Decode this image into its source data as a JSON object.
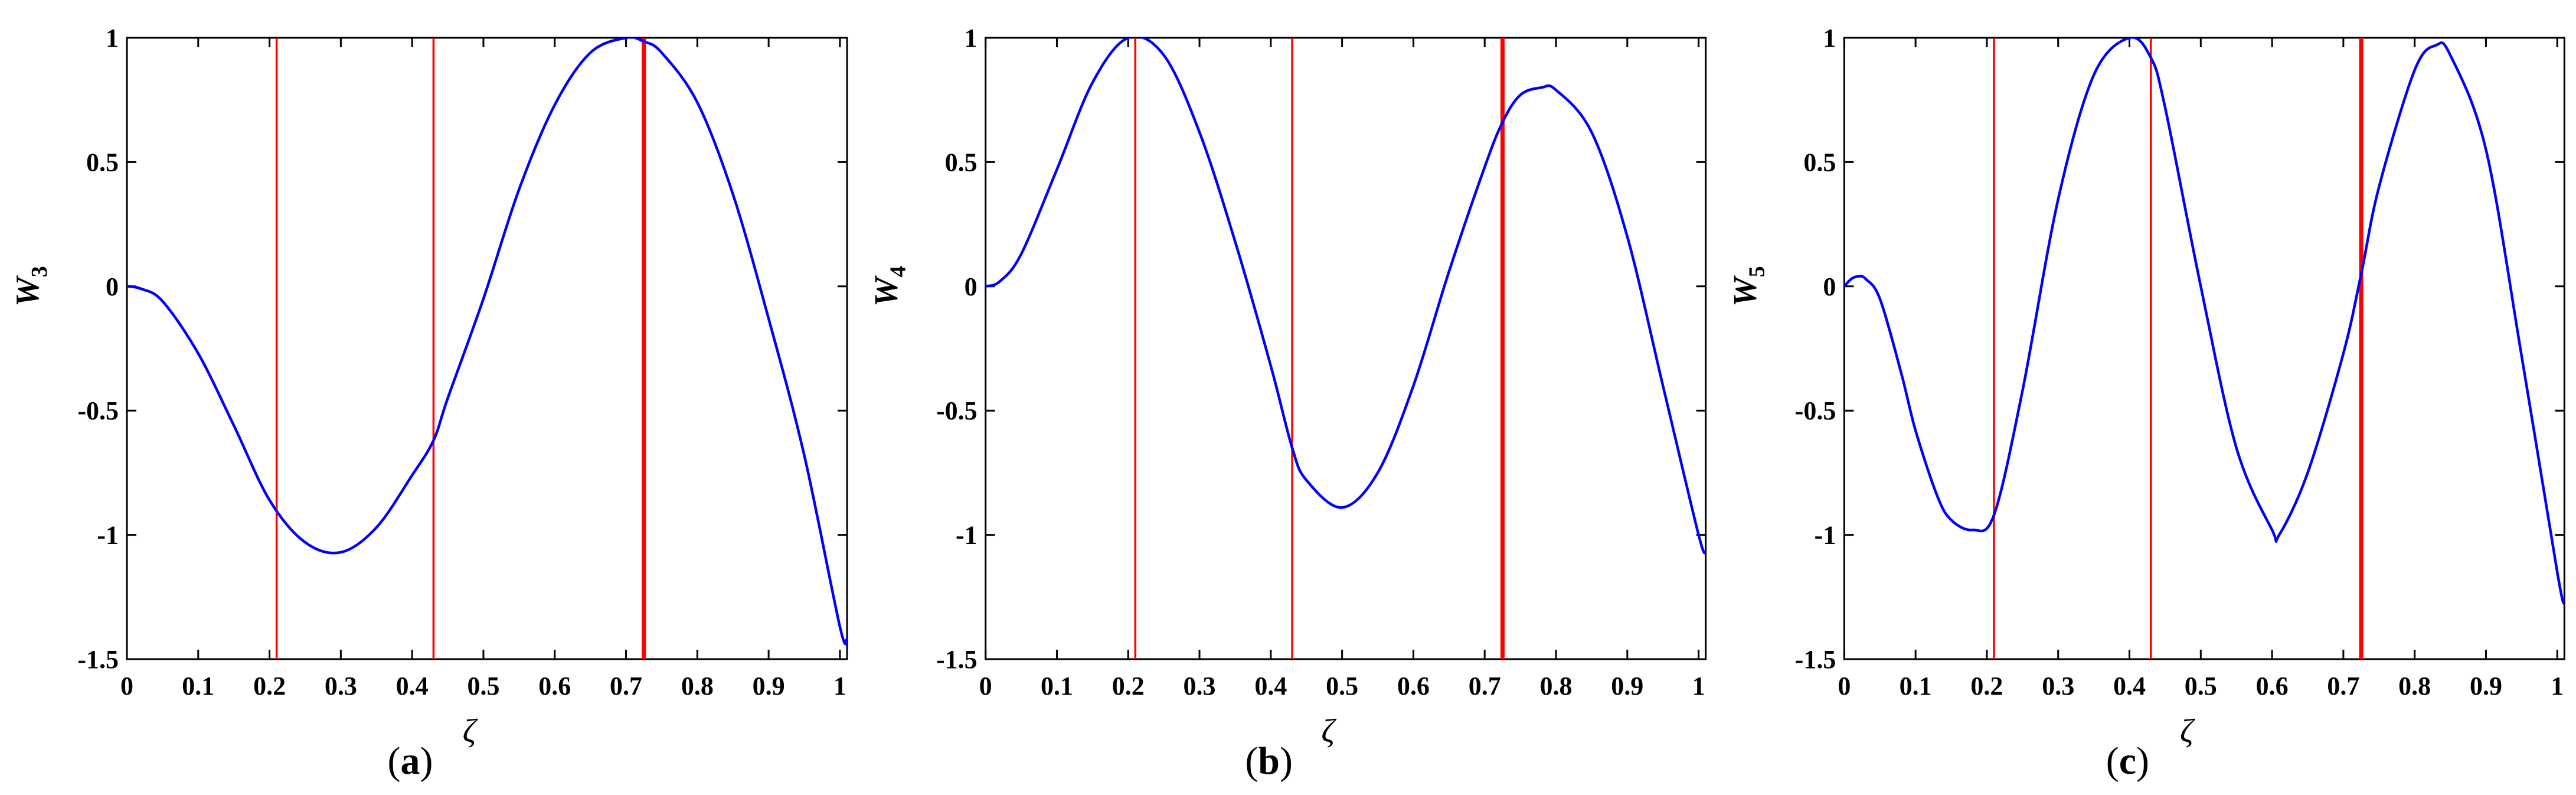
{
  "chart_data": [
    {
      "type": "line",
      "caption_letter": "a",
      "ylabel": "W",
      "ylabel_sub": "3",
      "xlabel": "ζ",
      "xlim": [
        0,
        1.01
      ],
      "ylim": [
        -1.5,
        1
      ],
      "xticks": [
        "0",
        "0.1",
        "0.2",
        "0.3",
        "0.4",
        "0.5",
        "0.6",
        "0.7",
        "0.8",
        "0.9",
        "1"
      ],
      "yticks": [
        "-1.5",
        "-1",
        "-0.5",
        "0",
        "0.5",
        "1"
      ],
      "vlines": [
        0.21,
        0.43,
        0.725
      ],
      "x": [
        0,
        0.02,
        0.05,
        0.1,
        0.15,
        0.2,
        0.25,
        0.3,
        0.35,
        0.4,
        0.43,
        0.45,
        0.5,
        0.55,
        0.6,
        0.65,
        0.7,
        0.725,
        0.75,
        0.8,
        0.85,
        0.9,
        0.95,
        1.0,
        1.01
      ],
      "y": [
        0,
        -0.01,
        -0.06,
        -0.27,
        -0.56,
        -0.86,
        -1.03,
        -1.07,
        -0.97,
        -0.76,
        -0.62,
        -0.45,
        -0.05,
        0.39,
        0.73,
        0.94,
        1.0,
        0.985,
        0.94,
        0.74,
        0.37,
        -0.13,
        -0.68,
        -1.37,
        -1.42
      ]
    },
    {
      "type": "line",
      "caption_letter": "b",
      "ylabel": "W",
      "ylabel_sub": "4",
      "xlabel": "ζ",
      "xlim": [
        0,
        1.01
      ],
      "ylim": [
        -1.5,
        1
      ],
      "xticks": [
        "0",
        "0.1",
        "0.2",
        "0.3",
        "0.4",
        "0.5",
        "0.6",
        "0.7",
        "0.8",
        "0.9",
        "1"
      ],
      "yticks": [
        "-1.5",
        "-1",
        "-0.5",
        "0",
        "0.5",
        "1"
      ],
      "vlines": [
        0.21,
        0.43,
        0.725
      ],
      "x": [
        0,
        0.02,
        0.05,
        0.1,
        0.15,
        0.2,
        0.25,
        0.3,
        0.35,
        0.4,
        0.43,
        0.45,
        0.5,
        0.55,
        0.6,
        0.65,
        0.7,
        0.725,
        0.75,
        0.78,
        0.8,
        0.85,
        0.9,
        0.95,
        1.0,
        1.01
      ],
      "y": [
        0,
        0.02,
        0.13,
        0.47,
        0.82,
        1.0,
        0.93,
        0.62,
        0.18,
        -0.32,
        -0.65,
        -0.78,
        -0.89,
        -0.75,
        -0.4,
        0.06,
        0.48,
        0.66,
        0.77,
        0.8,
        0.79,
        0.62,
        0.2,
        -0.4,
        -1.0,
        -1.07
      ]
    },
    {
      "type": "line",
      "caption_letter": "c",
      "ylabel": "W",
      "ylabel_sub": "5",
      "xlabel": "ζ",
      "xlim": [
        0,
        1.01
      ],
      "ylim": [
        -1.5,
        1
      ],
      "xticks": [
        "0",
        "0.1",
        "0.2",
        "0.3",
        "0.4",
        "0.5",
        "0.6",
        "0.7",
        "0.8",
        "0.9",
        "1"
      ],
      "yticks": [
        "-1.5",
        "-1",
        "-0.5",
        "0",
        "0.5",
        "1"
      ],
      "vlines": [
        0.21,
        0.43,
        0.725
      ],
      "x": [
        0,
        0.01,
        0.02,
        0.03,
        0.05,
        0.08,
        0.1,
        0.13,
        0.15,
        0.18,
        0.21,
        0.25,
        0.3,
        0.35,
        0.4,
        0.43,
        0.45,
        0.5,
        0.55,
        0.6,
        0.61,
        0.65,
        0.7,
        0.725,
        0.75,
        0.8,
        0.83,
        0.85,
        0.9,
        0.95,
        1.0,
        1.01
      ],
      "y": [
        0,
        0.03,
        0.04,
        0.03,
        -0.05,
        -0.35,
        -0.58,
        -0.84,
        -0.94,
        -0.98,
        -0.92,
        -0.42,
        0.35,
        0.85,
        1.0,
        0.92,
        0.72,
        0.0,
        -0.65,
        -0.98,
        -1.0,
        -0.75,
        -0.27,
        0.05,
        0.4,
        0.87,
        0.97,
        0.93,
        0.55,
        -0.28,
        -1.15,
        -1.28
      ]
    }
  ]
}
